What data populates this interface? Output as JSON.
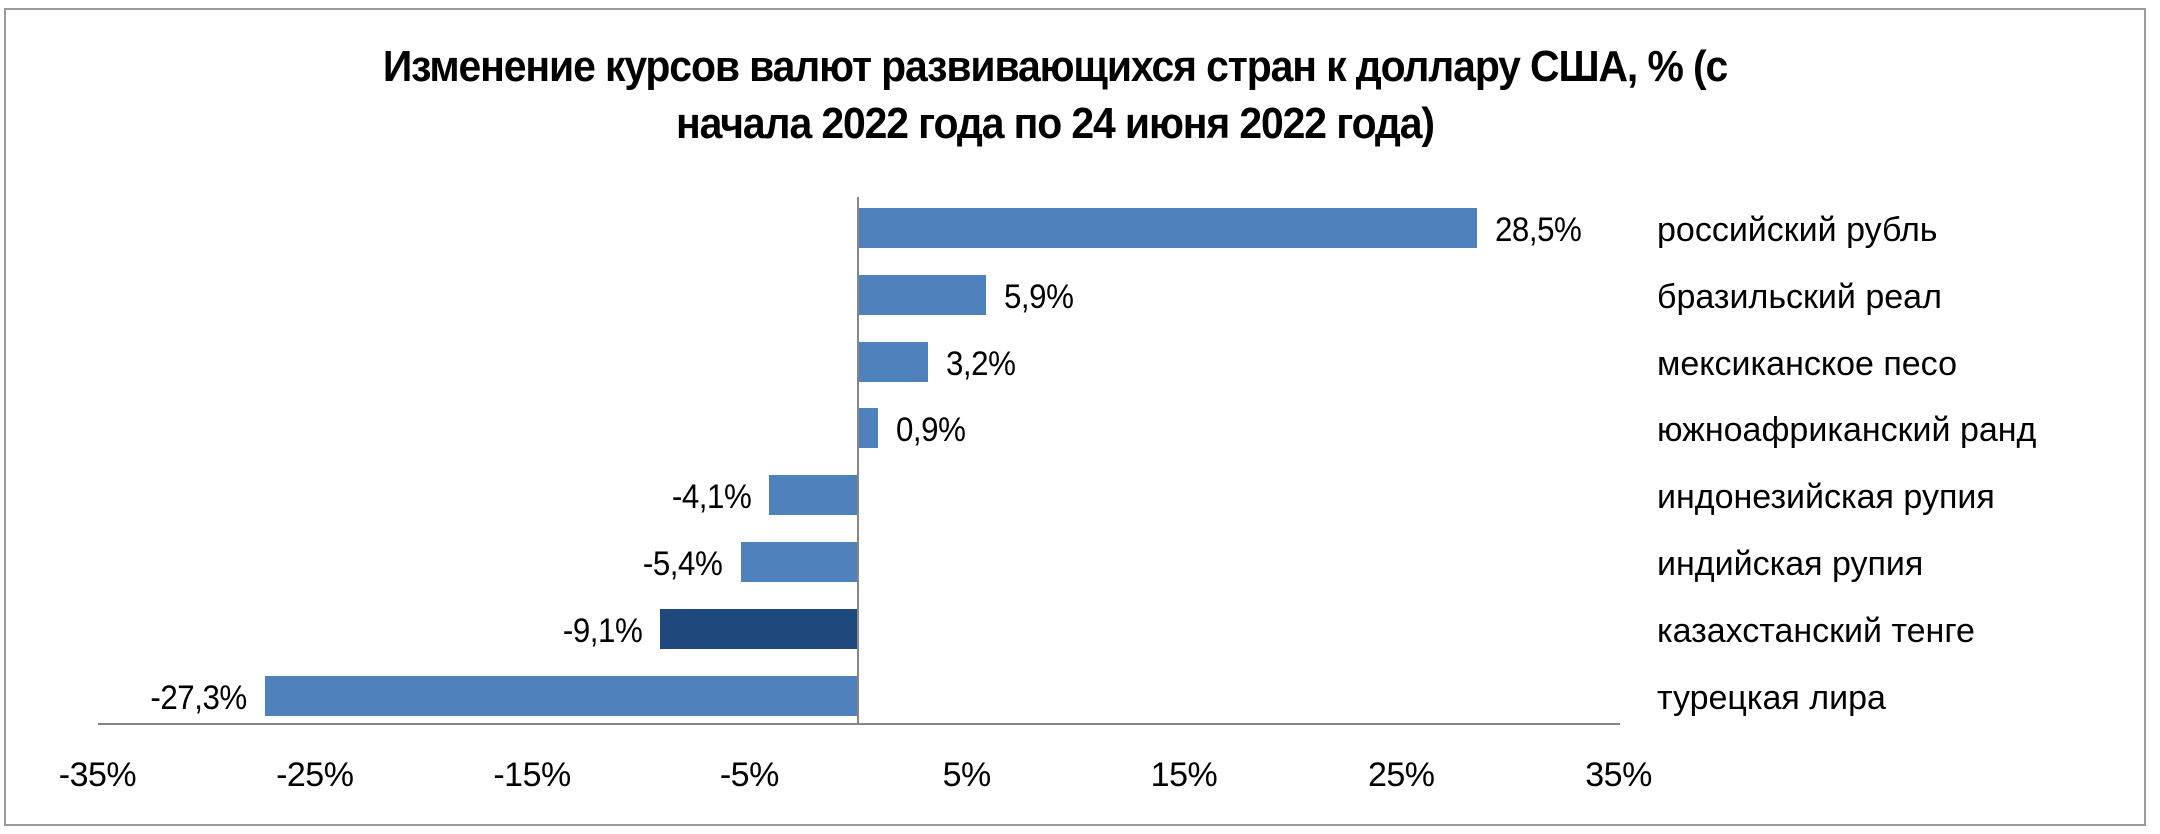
{
  "title": {
    "line1": "Изменение курсов валют развивающихся стран к доллару США, % (с",
    "line2": "начала 2022 года по 24 июня 2022 года)"
  },
  "colors": {
    "bar_default": "#4f81bd",
    "bar_highlight": "#1f497d",
    "axis": "#868686"
  },
  "chart_data": {
    "type": "bar",
    "orientation": "horizontal",
    "title": "Изменение курсов валют развивающихся стран к доллару США, % (с начала 2022 года по 24 июня 2022 года)",
    "xlabel": "",
    "ylabel": "",
    "categories": [
      "российский рубль",
      "бразильский реал",
      "мексиканское песо",
      "южноафриканский ранд",
      "индонезийская рупия",
      "индийская рупия",
      "казахстанский тенге",
      "турецкая лира"
    ],
    "values": [
      28.5,
      5.9,
      3.2,
      0.9,
      -4.1,
      -5.4,
      -9.1,
      -27.3
    ],
    "value_labels": [
      "28,5%",
      "5,9%",
      "3,2%",
      "0,9%",
      "-4,1%",
      "-5,4%",
      "-9,1%",
      "-27,3%"
    ],
    "highlighted": [
      "казахстанский тенге"
    ],
    "xlim": [
      -35,
      35
    ],
    "x_ticks": [
      -35,
      -25,
      -15,
      -5,
      5,
      15,
      25,
      35
    ],
    "x_tick_labels": [
      "-35%",
      "-25%",
      "-15%",
      "-5%",
      "5%",
      "15%",
      "25%",
      "35%"
    ],
    "grid": false,
    "legend": "none"
  }
}
